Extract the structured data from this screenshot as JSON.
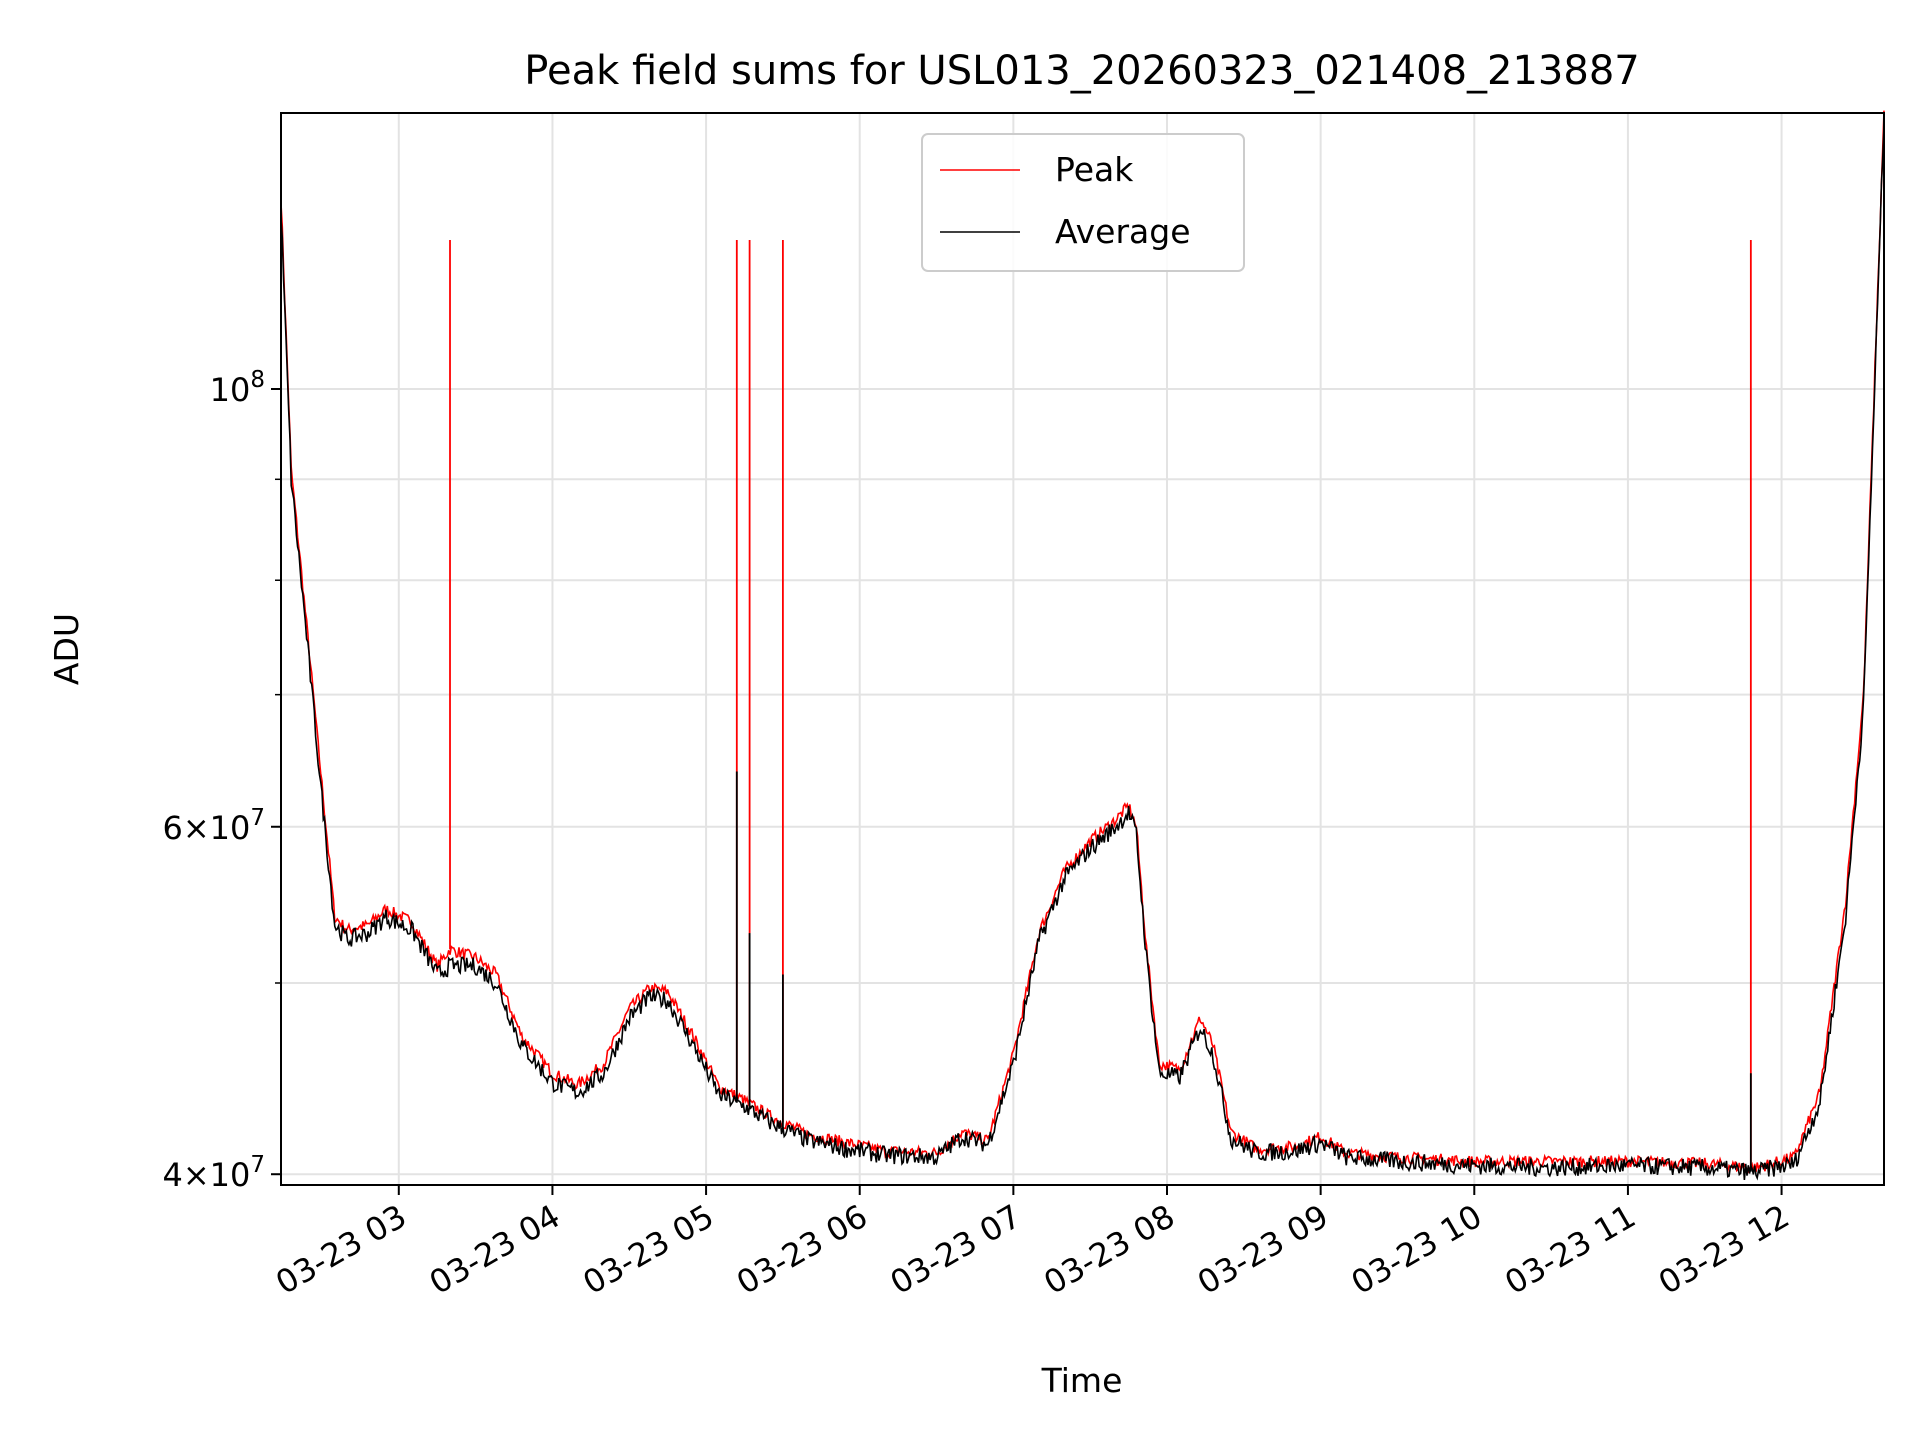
{
  "chart_data": {
    "type": "line",
    "title": "Peak field sums for USL013_20260323_021408_213887",
    "xlabel": "Time",
    "ylabel": "ADU",
    "yscale": "log",
    "ylim": [
      39500000,
      138000000
    ],
    "xlim": [
      "2026-03-23 02:14",
      "2026-03-23 12:40"
    ],
    "grid": true,
    "legend_position": "upper center",
    "x_ticks": [
      {
        "t": "2026-03-23 03:00",
        "label": "03-23 03"
      },
      {
        "t": "2026-03-23 04:00",
        "label": "03-23 04"
      },
      {
        "t": "2026-03-23 05:00",
        "label": "03-23 05"
      },
      {
        "t": "2026-03-23 06:00",
        "label": "03-23 06"
      },
      {
        "t": "2026-03-23 07:00",
        "label": "03-23 07"
      },
      {
        "t": "2026-03-23 08:00",
        "label": "03-23 08"
      },
      {
        "t": "2026-03-23 09:00",
        "label": "03-23 09"
      },
      {
        "t": "2026-03-23 10:00",
        "label": "03-23 10"
      },
      {
        "t": "2026-03-23 11:00",
        "label": "03-23 11"
      },
      {
        "t": "2026-03-23 12:00",
        "label": "03-23 12"
      }
    ],
    "y_major_ticks": [
      {
        "value": 40000000,
        "base": "4",
        "exp": "7"
      },
      {
        "value": 60000000,
        "base": "6",
        "exp": "7"
      },
      {
        "value": 100000000,
        "base": "10",
        "exp": "8"
      }
    ],
    "y_minor_ticks": [
      50000000,
      70000000,
      80000000,
      90000000
    ],
    "series": [
      {
        "name": "Peak",
        "color": "#ff0000",
        "baseline": [
          [
            "2026-03-23 02:14",
            125000000
          ],
          [
            "2026-03-23 02:18",
            91000000
          ],
          [
            "2026-03-23 02:24",
            76000000
          ],
          [
            "2026-03-23 02:30",
            63000000
          ],
          [
            "2026-03-23 02:35",
            54000000
          ],
          [
            "2026-03-23 02:40",
            53200000
          ],
          [
            "2026-03-23 02:48",
            53500000
          ],
          [
            "2026-03-23 02:55",
            54500000
          ],
          [
            "2026-03-23 03:05",
            53700000
          ],
          [
            "2026-03-23 03:15",
            51000000
          ],
          [
            "2026-03-23 03:20",
            52000000
          ],
          [
            "2026-03-23 03:30",
            51500000
          ],
          [
            "2026-03-23 03:38",
            50500000
          ],
          [
            "2026-03-23 03:48",
            47000000
          ],
          [
            "2026-03-23 04:00",
            45000000
          ],
          [
            "2026-03-23 04:10",
            44400000
          ],
          [
            "2026-03-23 04:20",
            45500000
          ],
          [
            "2026-03-23 04:30",
            48500000
          ],
          [
            "2026-03-23 04:38",
            49700000
          ],
          [
            "2026-03-23 04:45",
            49500000
          ],
          [
            "2026-03-23 04:55",
            47000000
          ],
          [
            "2026-03-23 05:05",
            44300000
          ],
          [
            "2026-03-23 05:15",
            43600000
          ],
          [
            "2026-03-23 05:25",
            42800000
          ],
          [
            "2026-03-23 05:40",
            41900000
          ],
          [
            "2026-03-23 05:55",
            41500000
          ],
          [
            "2026-03-23 06:10",
            41100000
          ],
          [
            "2026-03-23 06:30",
            41000000
          ],
          [
            "2026-03-23 06:40",
            42000000
          ],
          [
            "2026-03-23 06:50",
            41600000
          ],
          [
            "2026-03-23 07:00",
            46000000
          ],
          [
            "2026-03-23 07:10",
            53000000
          ],
          [
            "2026-03-23 07:20",
            57000000
          ],
          [
            "2026-03-23 07:30",
            59000000
          ],
          [
            "2026-03-23 07:40",
            60500000
          ],
          [
            "2026-03-23 07:45",
            61500000
          ],
          [
            "2026-03-23 07:48",
            60000000
          ],
          [
            "2026-03-23 07:52",
            52000000
          ],
          [
            "2026-03-23 07:57",
            45500000
          ],
          [
            "2026-03-23 08:05",
            45200000
          ],
          [
            "2026-03-23 08:13",
            48000000
          ],
          [
            "2026-03-23 08:18",
            46500000
          ],
          [
            "2026-03-23 08:25",
            42000000
          ],
          [
            "2026-03-23 08:35",
            41200000
          ],
          [
            "2026-03-23 08:50",
            41300000
          ],
          [
            "2026-03-23 09:00",
            41800000
          ],
          [
            "2026-03-23 09:10",
            41000000
          ],
          [
            "2026-03-23 09:30",
            40800000
          ],
          [
            "2026-03-23 10:00",
            40600000
          ],
          [
            "2026-03-23 10:30",
            40600000
          ],
          [
            "2026-03-23 11:00",
            40600000
          ],
          [
            "2026-03-23 11:30",
            40500000
          ],
          [
            "2026-03-23 11:50",
            40300000
          ],
          [
            "2026-03-23 12:05",
            40800000
          ],
          [
            "2026-03-23 12:15",
            44000000
          ],
          [
            "2026-03-23 12:25",
            55000000
          ],
          [
            "2026-03-23 12:32",
            70000000
          ],
          [
            "2026-03-23 12:40",
            138000000
          ]
        ],
        "spikes": [
          [
            "2026-03-23 03:20",
            119000000
          ],
          [
            "2026-03-23 05:12",
            119000000
          ],
          [
            "2026-03-23 05:17",
            119000000
          ],
          [
            "2026-03-23 05:30",
            119000000
          ],
          [
            "2026-03-23 11:48",
            119000000
          ]
        ]
      },
      {
        "name": "Average",
        "color": "#000000",
        "baseline": [
          [
            "2026-03-23 02:14",
            123000000
          ],
          [
            "2026-03-23 02:18",
            90000000
          ],
          [
            "2026-03-23 02:24",
            75000000
          ],
          [
            "2026-03-23 02:30",
            62000000
          ],
          [
            "2026-03-23 02:35",
            53500000
          ],
          [
            "2026-03-23 02:40",
            52600000
          ],
          [
            "2026-03-23 02:48",
            53000000
          ],
          [
            "2026-03-23 02:55",
            54000000
          ],
          [
            "2026-03-23 03:05",
            53200000
          ],
          [
            "2026-03-23 03:15",
            50500000
          ],
          [
            "2026-03-23 03:20",
            51000000
          ],
          [
            "2026-03-23 03:30",
            51000000
          ],
          [
            "2026-03-23 03:38",
            50000000
          ],
          [
            "2026-03-23 03:48",
            46500000
          ],
          [
            "2026-03-23 04:00",
            44500000
          ],
          [
            "2026-03-23 04:10",
            44000000
          ],
          [
            "2026-03-23 04:20",
            45000000
          ],
          [
            "2026-03-23 04:30",
            48000000
          ],
          [
            "2026-03-23 04:38",
            49200000
          ],
          [
            "2026-03-23 04:45",
            49000000
          ],
          [
            "2026-03-23 04:55",
            46500000
          ],
          [
            "2026-03-23 05:05",
            43900000
          ],
          [
            "2026-03-23 05:15",
            43300000
          ],
          [
            "2026-03-23 05:25",
            42500000
          ],
          [
            "2026-03-23 05:40",
            41600000
          ],
          [
            "2026-03-23 05:55",
            41200000
          ],
          [
            "2026-03-23 06:10",
            40900000
          ],
          [
            "2026-03-23 06:30",
            40800000
          ],
          [
            "2026-03-23 06:40",
            41800000
          ],
          [
            "2026-03-23 06:50",
            41400000
          ],
          [
            "2026-03-23 07:00",
            45500000
          ],
          [
            "2026-03-23 07:10",
            52500000
          ],
          [
            "2026-03-23 07:20",
            56500000
          ],
          [
            "2026-03-23 07:30",
            58500000
          ],
          [
            "2026-03-23 07:40",
            60000000
          ],
          [
            "2026-03-23 07:45",
            61000000
          ],
          [
            "2026-03-23 07:48",
            59500000
          ],
          [
            "2026-03-23 07:52",
            51500000
          ],
          [
            "2026-03-23 07:57",
            45000000
          ],
          [
            "2026-03-23 08:05",
            44800000
          ],
          [
            "2026-03-23 08:13",
            47500000
          ],
          [
            "2026-03-23 08:18",
            46000000
          ],
          [
            "2026-03-23 08:25",
            41700000
          ],
          [
            "2026-03-23 08:35",
            41000000
          ],
          [
            "2026-03-23 08:50",
            41100000
          ],
          [
            "2026-03-23 09:00",
            41500000
          ],
          [
            "2026-03-23 09:10",
            40800000
          ],
          [
            "2026-03-23 09:30",
            40600000
          ],
          [
            "2026-03-23 10:00",
            40400000
          ],
          [
            "2026-03-23 10:30",
            40300000
          ],
          [
            "2026-03-23 11:00",
            40400000
          ],
          [
            "2026-03-23 11:30",
            40300000
          ],
          [
            "2026-03-23 11:50",
            40100000
          ],
          [
            "2026-03-23 12:05",
            40500000
          ],
          [
            "2026-03-23 12:15",
            43500000
          ],
          [
            "2026-03-23 12:25",
            54000000
          ],
          [
            "2026-03-23 12:32",
            69000000
          ],
          [
            "2026-03-23 12:40",
            137000000
          ]
        ],
        "spikes": [
          [
            "2026-03-23 05:12",
            64000000
          ],
          [
            "2026-03-23 05:17",
            53000000
          ],
          [
            "2026-03-23 05:30",
            50500000
          ],
          [
            "2026-03-23 11:48",
            45000000
          ]
        ]
      }
    ]
  }
}
